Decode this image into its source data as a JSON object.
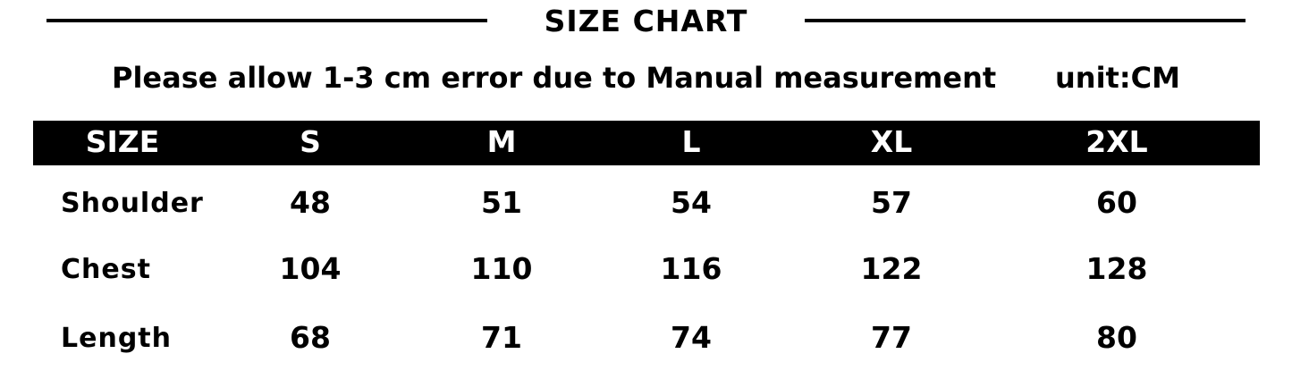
{
  "title": "SIZE CHART",
  "note": "Please allow 1-3 cm error due to Manual measurement",
  "unit": "unit:CM",
  "header": [
    "SIZE",
    "S",
    "M",
    "L",
    "XL",
    "2XL"
  ],
  "rows": [
    {
      "label": "Shoulder",
      "values": [
        "48",
        "51",
        "54",
        "57",
        "60"
      ]
    },
    {
      "label": "Chest",
      "values": [
        "104",
        "110",
        "116",
        "122",
        "128"
      ]
    },
    {
      "label": "Length",
      "values": [
        "68",
        "71",
        "74",
        "77",
        "80"
      ]
    }
  ]
}
